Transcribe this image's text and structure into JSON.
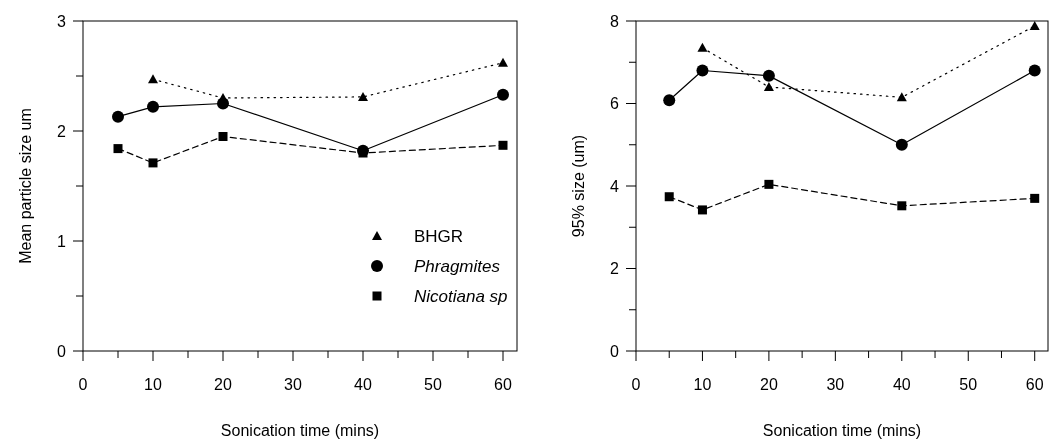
{
  "chart_data": [
    {
      "type": "line",
      "xlabel": "Sonication time (mins)",
      "ylabel": "Mean particle size um",
      "x": [
        5,
        10,
        20,
        40,
        60
      ],
      "xlim": [
        0,
        62
      ],
      "ylim": [
        0,
        3
      ],
      "xticks": [
        0,
        {
          "value": 5,
          "label": null
        },
        10,
        {
          "value": 15,
          "label": null
        },
        20,
        {
          "value": 25,
          "label": null
        },
        30,
        {
          "value": 35,
          "label": null
        },
        40,
        {
          "value": 45,
          "label": null
        },
        50,
        {
          "value": 55,
          "label": null
        },
        60
      ],
      "yticks": [
        0,
        {
          "value": 0.5,
          "label": null
        },
        1,
        {
          "value": 1.5,
          "label": null
        },
        2,
        {
          "value": 2.5,
          "label": null
        },
        3
      ],
      "legend": "bottom right",
      "grid": false,
      "series": [
        {
          "name": "BHGR",
          "color": "#000000",
          "values": [
            null,
            2.47,
            2.3,
            2.31,
            2.62
          ],
          "marker": "triangle",
          "line_style": "dotted"
        },
        {
          "name": "Phragmites",
          "color": "#000000",
          "values": [
            2.13,
            2.22,
            2.25,
            1.82,
            2.33
          ],
          "marker": "circle",
          "line_style": "solid"
        },
        {
          "name": "Nicotiana sp",
          "color": "#000000",
          "values": [
            1.84,
            1.71,
            1.95,
            1.8,
            1.87
          ],
          "marker": "square",
          "line_style": "dashed"
        }
      ]
    },
    {
      "type": "line",
      "xlabel": "Sonication time (mins)",
      "ylabel": "95% size (um)",
      "x": [
        5,
        10,
        20,
        40,
        60
      ],
      "xlim": [
        0,
        62
      ],
      "ylim": [
        0,
        8
      ],
      "xticks": [
        0,
        {
          "value": 5,
          "label": null
        },
        10,
        {
          "value": 15,
          "label": null
        },
        20,
        {
          "value": 25,
          "label": null
        },
        30,
        {
          "value": 35,
          "label": null
        },
        40,
        {
          "value": 45,
          "label": null
        },
        50,
        {
          "value": 55,
          "label": null
        },
        60
      ],
      "yticks": [
        0,
        {
          "value": 1,
          "label": null
        },
        2,
        {
          "value": 3,
          "label": null
        },
        4,
        {
          "value": 5,
          "label": null
        },
        6,
        {
          "value": 7,
          "label": null
        },
        8
      ],
      "legend": false,
      "grid": false,
      "series": [
        {
          "color": "#000000",
          "values": [
            null,
            7.35,
            6.4,
            6.15,
            7.88
          ],
          "marker": "triangle",
          "line_style": "dotted"
        },
        {
          "color": "#000000",
          "values": [
            6.08,
            6.8,
            6.67,
            5.0,
            6.8
          ],
          "marker": "circle",
          "line_style": "solid"
        },
        {
          "color": "#000000",
          "values": [
            3.74,
            3.42,
            4.04,
            3.52,
            3.7
          ],
          "marker": "square",
          "line_style": "dashed"
        }
      ]
    }
  ]
}
